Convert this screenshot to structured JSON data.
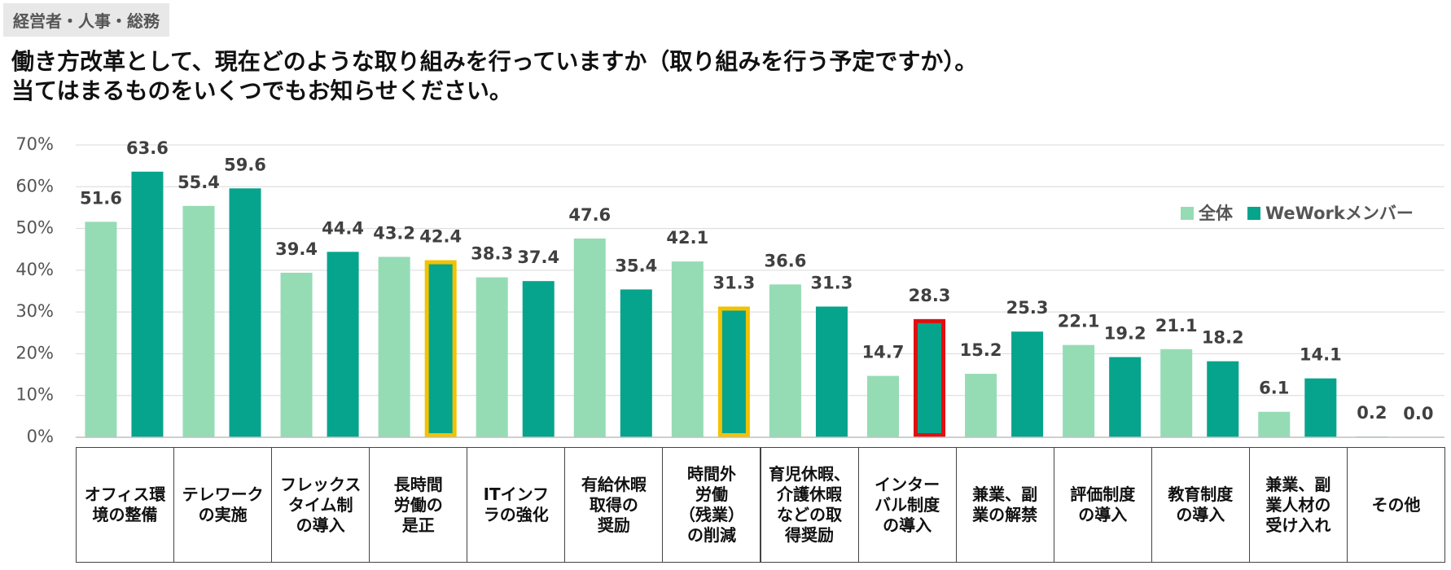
{
  "chart_data": {
    "type": "bar",
    "tag": "経営者・人事・総務",
    "title": "働き方改革として、現在どのような取り組みを行っていますか（取り組みを行う予定ですか）。\n当てはまるものをいくつでもお知らせください。",
    "categories": [
      "オフィス環\n境の整備",
      "テレワーク\nの実施",
      "フレックス\nタイム制\nの導入",
      "長時間\n労働の\n是正",
      "ITインフ\nラの強化",
      "有給休暇\n取得の\n奨励",
      "時間外\n労働\n（残業）\nの削減",
      "育児休暇、\n介護休暇\nなどの取\n得奨励",
      "インター\nバル制度\nの導入",
      "兼業、副\n業の解禁",
      "評価制度\nの導入",
      "教育制度\nの導入",
      "兼業、副\n業人材の\n受け入れ",
      "その他"
    ],
    "series": [
      {
        "name": "全体",
        "color": "#95dcb5",
        "values": [
          51.6,
          55.4,
          39.4,
          43.2,
          38.3,
          47.6,
          42.1,
          36.6,
          14.7,
          15.2,
          22.1,
          21.1,
          6.1,
          0.2
        ]
      },
      {
        "name": "WeWorkメンバー",
        "color": "#06a48c",
        "values": [
          63.6,
          59.6,
          44.4,
          42.4,
          37.4,
          35.4,
          31.3,
          31.3,
          28.3,
          25.3,
          19.2,
          18.2,
          14.1,
          0
        ],
        "value_labels": [
          "63.6",
          "59.6",
          "44.4",
          "42.4",
          "37.4",
          "35.4",
          "31.3",
          "31.3",
          "28.3",
          "25.3",
          "19.2",
          "18.2",
          "14.1",
          "0.0"
        ]
      }
    ],
    "highlights": [
      {
        "series": 1,
        "index": 3,
        "color": "#f2c200"
      },
      {
        "series": 1,
        "index": 6,
        "color": "#f2c200"
      },
      {
        "series": 1,
        "index": 8,
        "color": "#e01010"
      }
    ],
    "ylim": [
      0,
      70
    ],
    "yticks": [
      {
        "value": 0,
        "label": "0%"
      },
      {
        "value": 10,
        "label": "10%"
      },
      {
        "value": 20,
        "label": "20%"
      },
      {
        "value": 30,
        "label": "30%"
      },
      {
        "value": 40,
        "label": "40%"
      },
      {
        "value": 50,
        "label": "50%"
      },
      {
        "value": 60,
        "label": "60%"
      },
      {
        "value": 70,
        "label": "70%"
      }
    ],
    "grid": true,
    "legend": "upper right"
  }
}
